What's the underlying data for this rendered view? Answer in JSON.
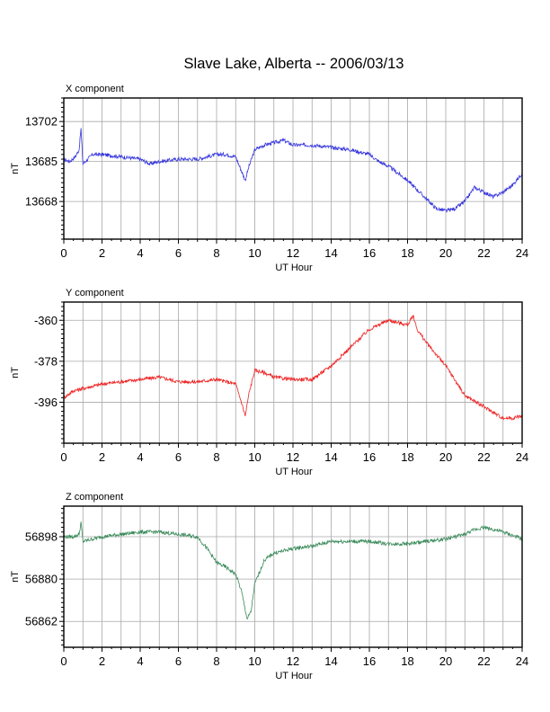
{
  "title": "Slave Lake, Alberta -- 2006/03/13",
  "chart_data": [
    {
      "type": "line",
      "panel_label": "X component",
      "xlabel": "UT Hour",
      "ylabel": "nT",
      "xlim": [
        0,
        24
      ],
      "ylim": [
        13652,
        13712
      ],
      "xticks": [
        0,
        2,
        4,
        6,
        8,
        10,
        12,
        14,
        16,
        18,
        20,
        22,
        24
      ],
      "yticks": [
        13702,
        13685,
        13668
      ],
      "grid": true,
      "color": "#3333dd",
      "x": [
        0,
        0.3,
        0.6,
        0.8,
        0.9,
        1.0,
        1.5,
        2,
        3,
        4,
        4.5,
        5,
        6,
        7,
        7.5,
        8,
        8.5,
        9,
        9.3,
        9.5,
        9.7,
        10,
        10.5,
        11,
        11.5,
        12,
        13,
        14,
        15,
        15.5,
        16,
        16.5,
        17,
        17.5,
        18,
        18.5,
        19,
        19.5,
        20,
        20.5,
        21,
        21.5,
        22,
        22.5,
        23,
        23.5,
        24
      ],
      "y": [
        13686,
        13685,
        13687,
        13690,
        13699,
        13684,
        13688,
        13688,
        13687,
        13686,
        13684,
        13685,
        13686,
        13686,
        13687,
        13688,
        13688,
        13687,
        13681,
        13677,
        13683,
        13690,
        13692,
        13693,
        13694,
        13692,
        13692,
        13691,
        13690,
        13689,
        13688,
        13685,
        13683,
        13680,
        13677,
        13673,
        13669,
        13665,
        13664,
        13665,
        13668,
        13674,
        13672,
        13670,
        13672,
        13675,
        13680
      ]
    },
    {
      "type": "line",
      "panel_label": "Y component",
      "xlabel": "UT Hour",
      "ylabel": "nT",
      "xlim": [
        0,
        24
      ],
      "ylim": [
        -414,
        -352
      ],
      "xticks": [
        0,
        2,
        4,
        6,
        8,
        10,
        12,
        14,
        16,
        18,
        20,
        22,
        24
      ],
      "yticks": [
        -360,
        -378,
        -396
      ],
      "grid": true,
      "color": "#ee2222",
      "x": [
        0,
        0.5,
        1,
        2,
        3,
        4,
        5,
        6,
        7,
        8,
        8.5,
        9,
        9.3,
        9.5,
        9.7,
        10,
        10.5,
        11,
        12,
        13,
        14,
        15,
        16,
        17,
        18,
        18.3,
        18.5,
        19,
        20,
        21,
        22,
        23,
        23.5,
        24
      ],
      "y": [
        -394,
        -391,
        -390,
        -388,
        -387,
        -386,
        -385,
        -387,
        -387,
        -386,
        -387,
        -388,
        -396,
        -402,
        -392,
        -382,
        -383,
        -385,
        -386,
        -386,
        -380,
        -372,
        -364,
        -360,
        -362,
        -358,
        -364,
        -370,
        -380,
        -393,
        -398,
        -403,
        -403,
        -402
      ]
    },
    {
      "type": "line",
      "panel_label": "Z component",
      "xlabel": "UT Hour",
      "ylabel": "nT",
      "xlim": [
        0,
        24
      ],
      "ylim": [
        56851,
        56911
      ],
      "xticks": [
        0,
        2,
        4,
        6,
        8,
        10,
        12,
        14,
        16,
        18,
        20,
        22,
        24
      ],
      "yticks": [
        56898,
        56880,
        56862
      ],
      "grid": true,
      "color": "#3a8a5a",
      "x": [
        0,
        0.5,
        0.8,
        0.9,
        1.0,
        2,
        3,
        4,
        5,
        6,
        7,
        7.5,
        8,
        8.5,
        9,
        9.3,
        9.6,
        9.8,
        10,
        10.5,
        11,
        12,
        13,
        14,
        15,
        16,
        17,
        18,
        19,
        20,
        21,
        21.5,
        22,
        23,
        24
      ],
      "y": [
        56898,
        56898,
        56899,
        56904,
        56896,
        56898,
        56899,
        56900,
        56900,
        56899,
        56898,
        56893,
        56887,
        56885,
        56882,
        56875,
        56863,
        56866,
        56878,
        56888,
        56891,
        56893,
        56894,
        56896,
        56896,
        56896,
        56895,
        56895,
        56896,
        56897,
        56899,
        56901,
        56902,
        56900,
        56897
      ]
    }
  ]
}
